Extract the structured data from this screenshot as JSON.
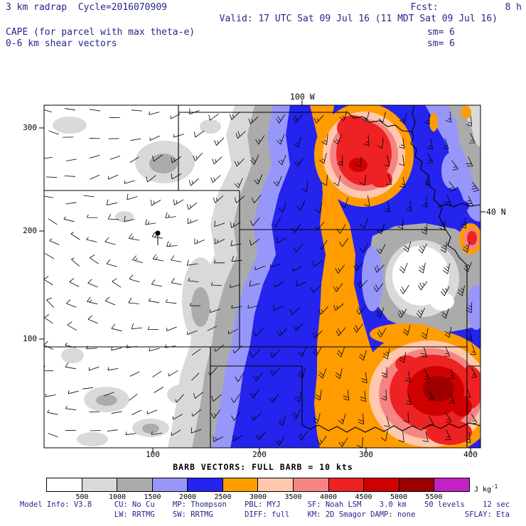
{
  "header": {
    "title_left": "3 km radrap  Cycle=2016070909",
    "fcst": "Fcst:            8 h",
    "valid": "Valid: 17 UTC Sat 09 Jul 16 (11 MDT Sat 09 Jul 16)",
    "param1": "CAPE (for parcel with max theta-e)",
    "param2": "0-6 km shear vectors",
    "sm1": "sm= 6",
    "sm2": "sm= 6"
  },
  "map": {
    "lon_label": "100 W",
    "lat_label": "40 N",
    "y_ticks": [
      "300",
      "200",
      "100"
    ],
    "x_ticks": [
      "100",
      "200",
      "300",
      "400"
    ]
  },
  "caption": "BARB VECTORS: FULL BARB = 10 kts",
  "colorbar": {
    "labels": [
      "500",
      "1000",
      "1500",
      "2000",
      "2500",
      "3000",
      "3500",
      "4000",
      "4500",
      "5000",
      "5500"
    ],
    "colors": [
      "#ffffff",
      "#d9d9d9",
      "#ababab",
      "#9797fa",
      "#2424ee",
      "#ff9c00",
      "#ffc8ae",
      "#f58484",
      "#ee2222",
      "#cf0000",
      "#9e0000",
      "#c322c3"
    ],
    "units": "J kg",
    "units_exponent": "-1"
  },
  "footer": {
    "line1": "Model Info: V3.8     CU: No Cu    MP: Thompson    PBL: MYJ      SF: Noah LSM    3.0 km    50 levels    12 sec",
    "line2": "                     LW: RRTMG    SW: RRTMG       DIFF: full    KM: 2D Smagor DAMP: none           SFLAY: Eta"
  }
}
